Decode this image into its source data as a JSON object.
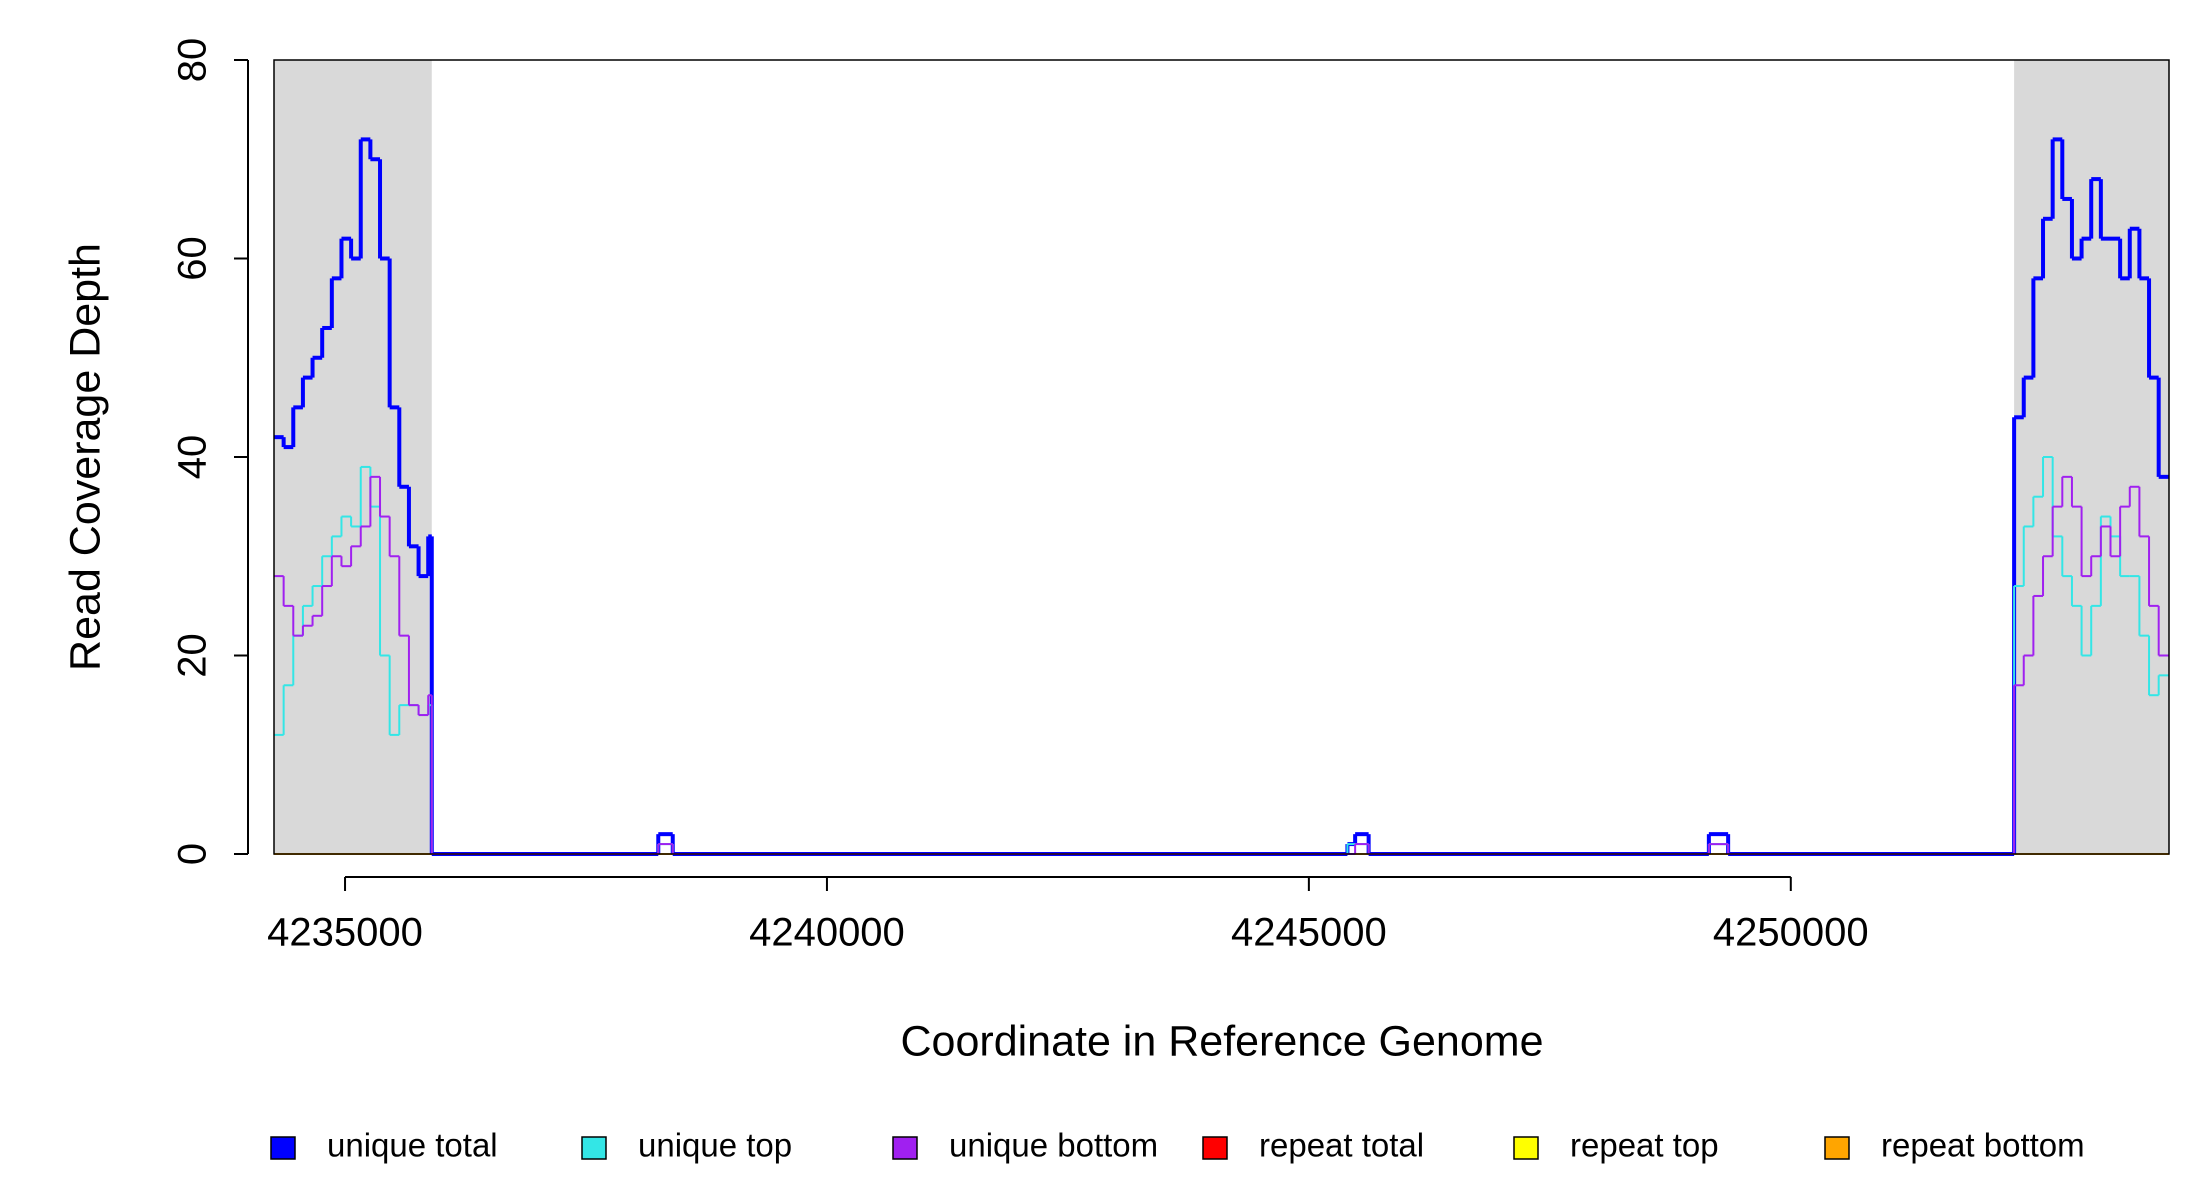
{
  "chart_data": {
    "type": "step",
    "xlabel": "Coordinate in Reference Genome",
    "ylabel": "Read Coverage Depth",
    "xlim": [
      4234263,
      4253924
    ],
    "ylim": [
      0,
      80
    ],
    "xticks": [
      4235000,
      4240000,
      4245000,
      4250000
    ],
    "yticks": [
      0,
      20,
      40,
      60,
      80
    ],
    "shaded_regions": [
      [
        4234263,
        4235900
      ],
      [
        4252317,
        4253924
      ]
    ],
    "shade_color": "#d9d9d9",
    "x": [
      4234263,
      4234363,
      4234463,
      4234563,
      4234663,
      4234763,
      4234863,
      4234963,
      4235063,
      4235163,
      4235263,
      4235363,
      4235463,
      4235563,
      4235663,
      4235763,
      4235863,
      4235900,
      4238250,
      4238400,
      4245400,
      4245480,
      4245620,
      4249150,
      4249350,
      4252317,
      4252417,
      4252517,
      4252617,
      4252717,
      4252817,
      4252917,
      4253017,
      4253117,
      4253217,
      4253317,
      4253417,
      4253517,
      4253617,
      4253717,
      4253817
    ],
    "series": [
      {
        "name": "unique total",
        "color": "#0000ff",
        "width": 4,
        "values": [
          42,
          41,
          45,
          48,
          50,
          53,
          58,
          62,
          60,
          72,
          70,
          60,
          45,
          37,
          31,
          28,
          32,
          0,
          2,
          0,
          1,
          2,
          0,
          2,
          0,
          44,
          48,
          58,
          64,
          72,
          66,
          60,
          62,
          68,
          62,
          62,
          58,
          63,
          58,
          48,
          38
        ]
      },
      {
        "name": "unique top",
        "color": "#33e6e6",
        "width": 2,
        "values": [
          12,
          17,
          22,
          25,
          27,
          30,
          32,
          34,
          33,
          39,
          35,
          20,
          12,
          15,
          15,
          14,
          15,
          0,
          1,
          0,
          1,
          1,
          0,
          1,
          0,
          27,
          33,
          36,
          40,
          32,
          28,
          25,
          20,
          25,
          34,
          32,
          28,
          28,
          22,
          16,
          18
        ]
      },
      {
        "name": "unique bottom",
        "color": "#a020f0",
        "width": 2,
        "values": [
          28,
          25,
          22,
          23,
          24,
          27,
          30,
          29,
          31,
          33,
          38,
          34,
          30,
          22,
          15,
          14,
          16,
          0,
          1,
          0,
          0,
          1,
          0,
          1,
          0,
          17,
          20,
          26,
          30,
          35,
          38,
          35,
          28,
          30,
          33,
          30,
          35,
          37,
          32,
          25,
          20
        ]
      },
      {
        "name": "repeat total",
        "color": "#ff0000",
        "width": 2,
        "values": [
          0,
          0,
          0,
          0,
          0,
          0,
          0,
          0,
          0,
          0,
          0,
          0,
          0,
          0,
          0,
          0,
          0,
          0,
          0,
          0,
          0,
          0,
          0,
          0,
          0,
          0,
          0,
          0,
          0,
          0,
          0,
          0,
          0,
          0,
          0,
          0,
          0,
          0,
          0,
          0,
          0
        ]
      },
      {
        "name": "repeat top",
        "color": "#ffff00",
        "width": 2,
        "values": [
          0,
          0,
          0,
          0,
          0,
          0,
          0,
          0,
          0,
          0,
          0,
          0,
          0,
          0,
          0,
          0,
          0,
          0,
          0,
          0,
          0,
          0,
          0,
          0,
          0,
          0,
          0,
          0,
          0,
          0,
          0,
          0,
          0,
          0,
          0,
          0,
          0,
          0,
          0,
          0,
          0
        ]
      },
      {
        "name": "repeat bottom",
        "color": "#ffa500",
        "width": 2,
        "values": [
          0,
          0,
          0,
          0,
          0,
          0,
          0,
          0,
          0,
          0,
          0,
          0,
          0,
          0,
          0,
          0,
          0,
          0,
          0,
          0,
          0,
          0,
          0,
          0,
          0,
          0,
          0,
          0,
          0,
          0,
          0,
          0,
          0,
          0,
          0,
          0,
          0,
          0,
          0,
          0,
          0
        ]
      }
    ]
  }
}
